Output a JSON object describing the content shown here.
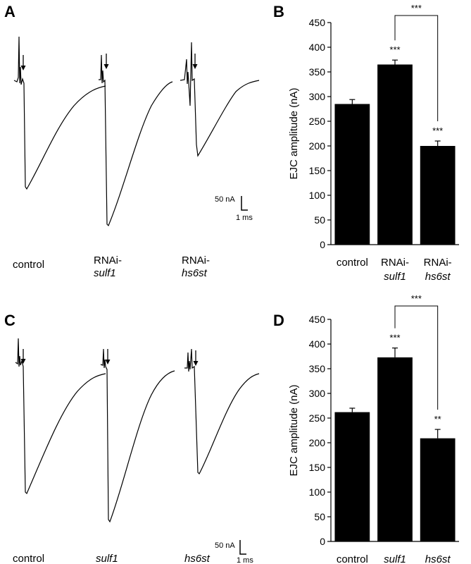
{
  "panels": {
    "A": {
      "letter": "A",
      "traces": [
        {
          "line1": "control",
          "line2": "",
          "italic2": false
        },
        {
          "line1": "RNAi-",
          "line2": "sulf1",
          "italic2": true
        },
        {
          "line1": "RNAi-",
          "line2": "hs6st",
          "italic2": true
        }
      ],
      "scale_v": "50 nA",
      "scale_h": "1 ms"
    },
    "C": {
      "letter": "C",
      "traces": [
        {
          "line1": "control",
          "line2": "",
          "italic2": false
        },
        {
          "line1": "sulf1",
          "line2": "",
          "italic2": true,
          "italic1": true
        },
        {
          "line1": "hs6st",
          "line2": "",
          "italic2": true,
          "italic1": true
        }
      ],
      "scale_v": "50 nA",
      "scale_h": "1 ms"
    }
  },
  "chart_data": [
    {
      "panel": "B",
      "letter": "B",
      "type": "bar",
      "ylabel": "EJC amplitude (nA)",
      "ylim": [
        0,
        450
      ],
      "yticks": [
        0,
        50,
        100,
        150,
        200,
        250,
        300,
        350,
        400,
        450
      ],
      "categories": [
        {
          "line1": "control",
          "line2": "",
          "italic1": false
        },
        {
          "line1": "RNAi-",
          "line2": "sulf1",
          "italic1": false
        },
        {
          "line1": "RNAi-",
          "line2": "hs6st",
          "italic1": false
        }
      ],
      "values": [
        285,
        365,
        200
      ],
      "errors": [
        9,
        9,
        10
      ],
      "stars": [
        "",
        "***",
        "***"
      ],
      "bracket": {
        "from": 1,
        "to": 2,
        "label": "***"
      },
      "bar_color": "#000000"
    },
    {
      "panel": "D",
      "letter": "D",
      "type": "bar",
      "ylabel": "EJC amplitude (nA)",
      "ylim": [
        0,
        450
      ],
      "yticks": [
        0,
        50,
        100,
        150,
        200,
        250,
        300,
        350,
        400,
        450
      ],
      "categories": [
        {
          "line1": "control",
          "line2": "",
          "italic1": false
        },
        {
          "line1": "sulf1",
          "line2": "",
          "italic1": true
        },
        {
          "line1": "hs6st",
          "line2": "",
          "italic1": true
        }
      ],
      "values": [
        262,
        373,
        209
      ],
      "errors": [
        8,
        19,
        18
      ],
      "stars": [
        "",
        "***",
        "**"
      ],
      "bracket": {
        "from": 1,
        "to": 2,
        "label": "***"
      },
      "bar_color": "#000000"
    }
  ]
}
